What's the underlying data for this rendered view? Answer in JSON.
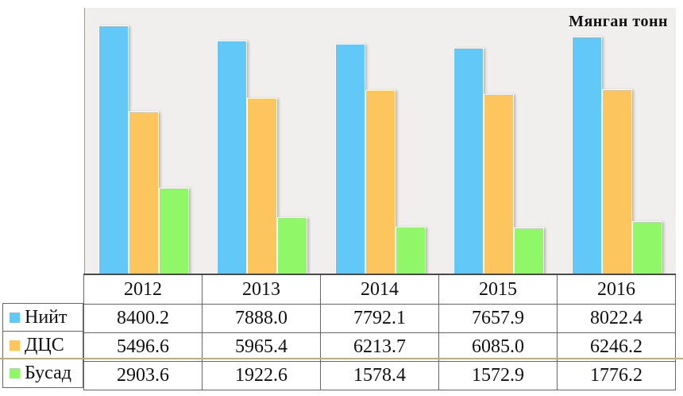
{
  "chart_data": {
    "type": "bar",
    "title": "Мянган тонн",
    "categories": [
      "2012",
      "2013",
      "2014",
      "2015",
      "2016"
    ],
    "series": [
      {
        "name": "Нийт",
        "color": "#61C8F8",
        "values": [
          8400.2,
          7888.0,
          7792.1,
          7657.9,
          8022.4
        ]
      },
      {
        "name": "ДЦС",
        "color": "#FCC55E",
        "values": [
          5496.6,
          5965.4,
          6213.7,
          6085.0,
          6246.2
        ]
      },
      {
        "name": "Бусад",
        "color": "#90F768",
        "values": [
          2903.6,
          1922.6,
          1578.4,
          1572.9,
          1776.2
        ]
      }
    ],
    "ylim": [
      0,
      9000
    ],
    "grid": false,
    "legend_position": "table-left",
    "value_decimals": 1,
    "plot_background": "#F0EFEE",
    "accent_rule_color": "#B9B07C"
  }
}
